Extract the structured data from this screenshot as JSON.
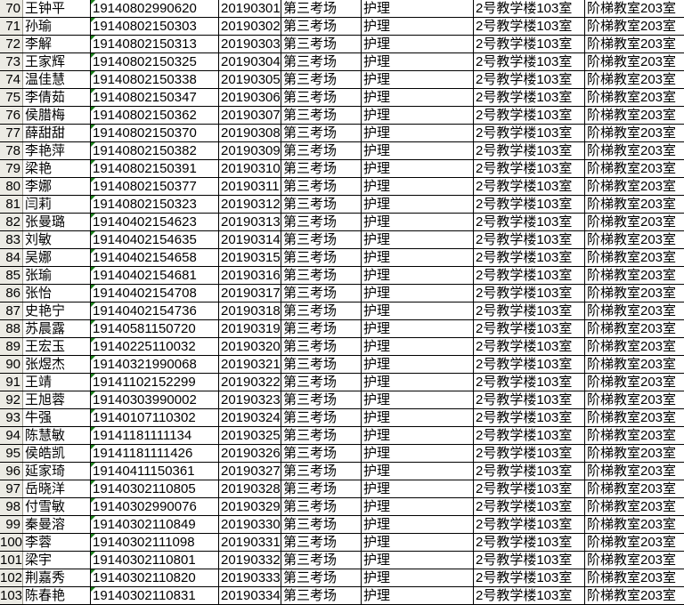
{
  "sheet": {
    "venue": "第三考场",
    "major": "护理",
    "room1": "2号教学楼103室",
    "room2": "阶梯教室203室",
    "rows": [
      {
        "n": "70",
        "name": "王钟平",
        "id": "19140802990620",
        "exam": "20190301"
      },
      {
        "n": "71",
        "name": "孙瑜",
        "id": "19140802150303",
        "exam": "20190302"
      },
      {
        "n": "72",
        "name": "李解",
        "id": "19140802150313",
        "exam": "20190303"
      },
      {
        "n": "73",
        "name": "王家辉",
        "id": "19140802150325",
        "exam": "20190304"
      },
      {
        "n": "74",
        "name": "温佳慧",
        "id": "19140802150338",
        "exam": "20190305"
      },
      {
        "n": "75",
        "name": "李倩茹",
        "id": "19140802150347",
        "exam": "20190306"
      },
      {
        "n": "76",
        "name": "侯腊梅",
        "id": "19140802150362",
        "exam": "20190307"
      },
      {
        "n": "77",
        "name": "薛甜甜",
        "id": "19140802150370",
        "exam": "20190308"
      },
      {
        "n": "78",
        "name": "李艳萍",
        "id": "19140802150382",
        "exam": "20190309"
      },
      {
        "n": "79",
        "name": "梁艳",
        "id": "19140802150391",
        "exam": "20190310"
      },
      {
        "n": "80",
        "name": "李娜",
        "id": "19140802150377",
        "exam": "20190311"
      },
      {
        "n": "81",
        "name": "闫莉",
        "id": "19140802150323",
        "exam": "20190312"
      },
      {
        "n": "82",
        "name": "张曼璐",
        "id": "19140402154623",
        "exam": "20190313"
      },
      {
        "n": "83",
        "name": "刘敏",
        "id": "19140402154635",
        "exam": "20190314"
      },
      {
        "n": "84",
        "name": "吴娜",
        "id": "19140402154658",
        "exam": "20190315"
      },
      {
        "n": "85",
        "name": "张瑜",
        "id": "19140402154681",
        "exam": "20190316"
      },
      {
        "n": "86",
        "name": "张怡",
        "id": "19140402154708",
        "exam": "20190317"
      },
      {
        "n": "87",
        "name": "史艳宁",
        "id": "19140402154736",
        "exam": "20190318"
      },
      {
        "n": "88",
        "name": "苏晨露",
        "id": "19140581150720",
        "exam": "20190319"
      },
      {
        "n": "89",
        "name": "王宏玉",
        "id": "19140225110032",
        "exam": "20190320"
      },
      {
        "n": "90",
        "name": "张煜杰",
        "id": "19140321990068",
        "exam": "20190321"
      },
      {
        "n": "91",
        "name": "王靖",
        "id": "19141102152299",
        "exam": "20190322"
      },
      {
        "n": "92",
        "name": "王旭蓉",
        "id": "19140303990002",
        "exam": "20190323"
      },
      {
        "n": "93",
        "name": "牛强",
        "id": "19140107110302",
        "exam": "20190324"
      },
      {
        "n": "94",
        "name": "陈慧敏",
        "id": "19141181111134",
        "exam": "20190325"
      },
      {
        "n": "95",
        "name": "侯皓凯",
        "id": "19141181111426",
        "exam": "20190326"
      },
      {
        "n": "96",
        "name": "延家琦",
        "id": "19140411150361",
        "exam": "20190327"
      },
      {
        "n": "97",
        "name": "岳晓洋",
        "id": "19140302110805",
        "exam": "20190328"
      },
      {
        "n": "98",
        "name": "付雪敏",
        "id": "19140302990076",
        "exam": "20190329"
      },
      {
        "n": "99",
        "name": "秦曼溶",
        "id": "19140302110849",
        "exam": "20190330"
      },
      {
        "n": "100",
        "name": "李蓉",
        "id": "19140302111098",
        "exam": "20190331"
      },
      {
        "n": "101",
        "name": "梁宇",
        "id": "19140302110801",
        "exam": "20190332"
      },
      {
        "n": "102",
        "name": "荆嘉秀",
        "id": "19140302110820",
        "exam": "20190333"
      },
      {
        "n": "103",
        "name": "陈春艳",
        "id": "19140302110831",
        "exam": "20190334"
      }
    ]
  }
}
